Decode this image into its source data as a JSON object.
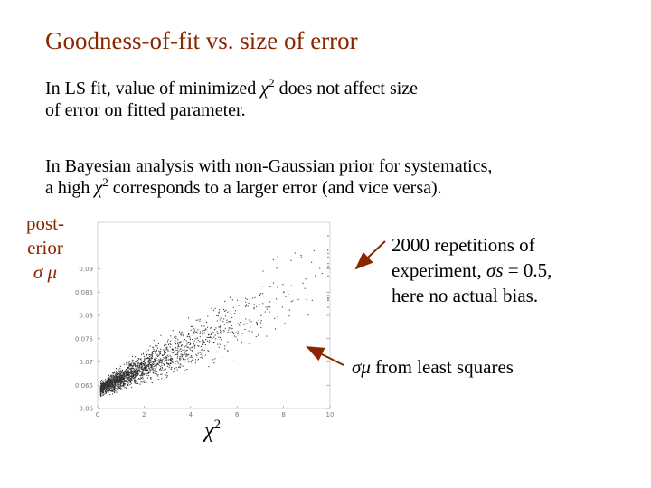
{
  "slide": {
    "title": "Goodness-of-fit vs. size of error",
    "p1_text_a": "In LS fit, value of minimized ",
    "p1_chi": "χ",
    "p1_sup": "2",
    "p1_text_b": " does not affect size",
    "p1_line2": "of error on fitted parameter.",
    "p2_line1": "In Bayesian analysis with non-Gaussian prior for systematics,",
    "p2_text_a": "a high ",
    "p2_chi": "χ",
    "p2_sup": "2",
    "p2_text_b": " corresponds to a larger error (and vice versa).",
    "ylabel_line1": "post-",
    "ylabel_line2": "erior",
    "ylabel_sym": "σ μ",
    "note_line1": "2000 repetitions of",
    "note_line2_a": "experiment, ",
    "note_line2_sym": "σs",
    "note_line2_b": " = 0.5,",
    "note_line3": "here no actual bias.",
    "lsq_sym": "σμ",
    "lsq_text": " from least squares",
    "xlabel_chi": "χ",
    "xlabel_sup": "2",
    "colors": {
      "title": "#8b2500",
      "arrow": "#8b2500"
    }
  },
  "chart_data": {
    "type": "scatter",
    "n_points": 2000,
    "xlim": [
      0,
      10
    ],
    "ylim": [
      0.06,
      0.1
    ],
    "x_ticks": [
      "0",
      "2",
      "4",
      "6",
      "8",
      "10"
    ],
    "y_ticks": [
      "0.06",
      "0.065",
      "0.07",
      "0.075",
      "0.08",
      "0.085",
      "0.09"
    ],
    "least_squares_sigma": 0.0667,
    "trend_slope_per_chi2": 0.0025,
    "trend_intercept": 0.064
  }
}
